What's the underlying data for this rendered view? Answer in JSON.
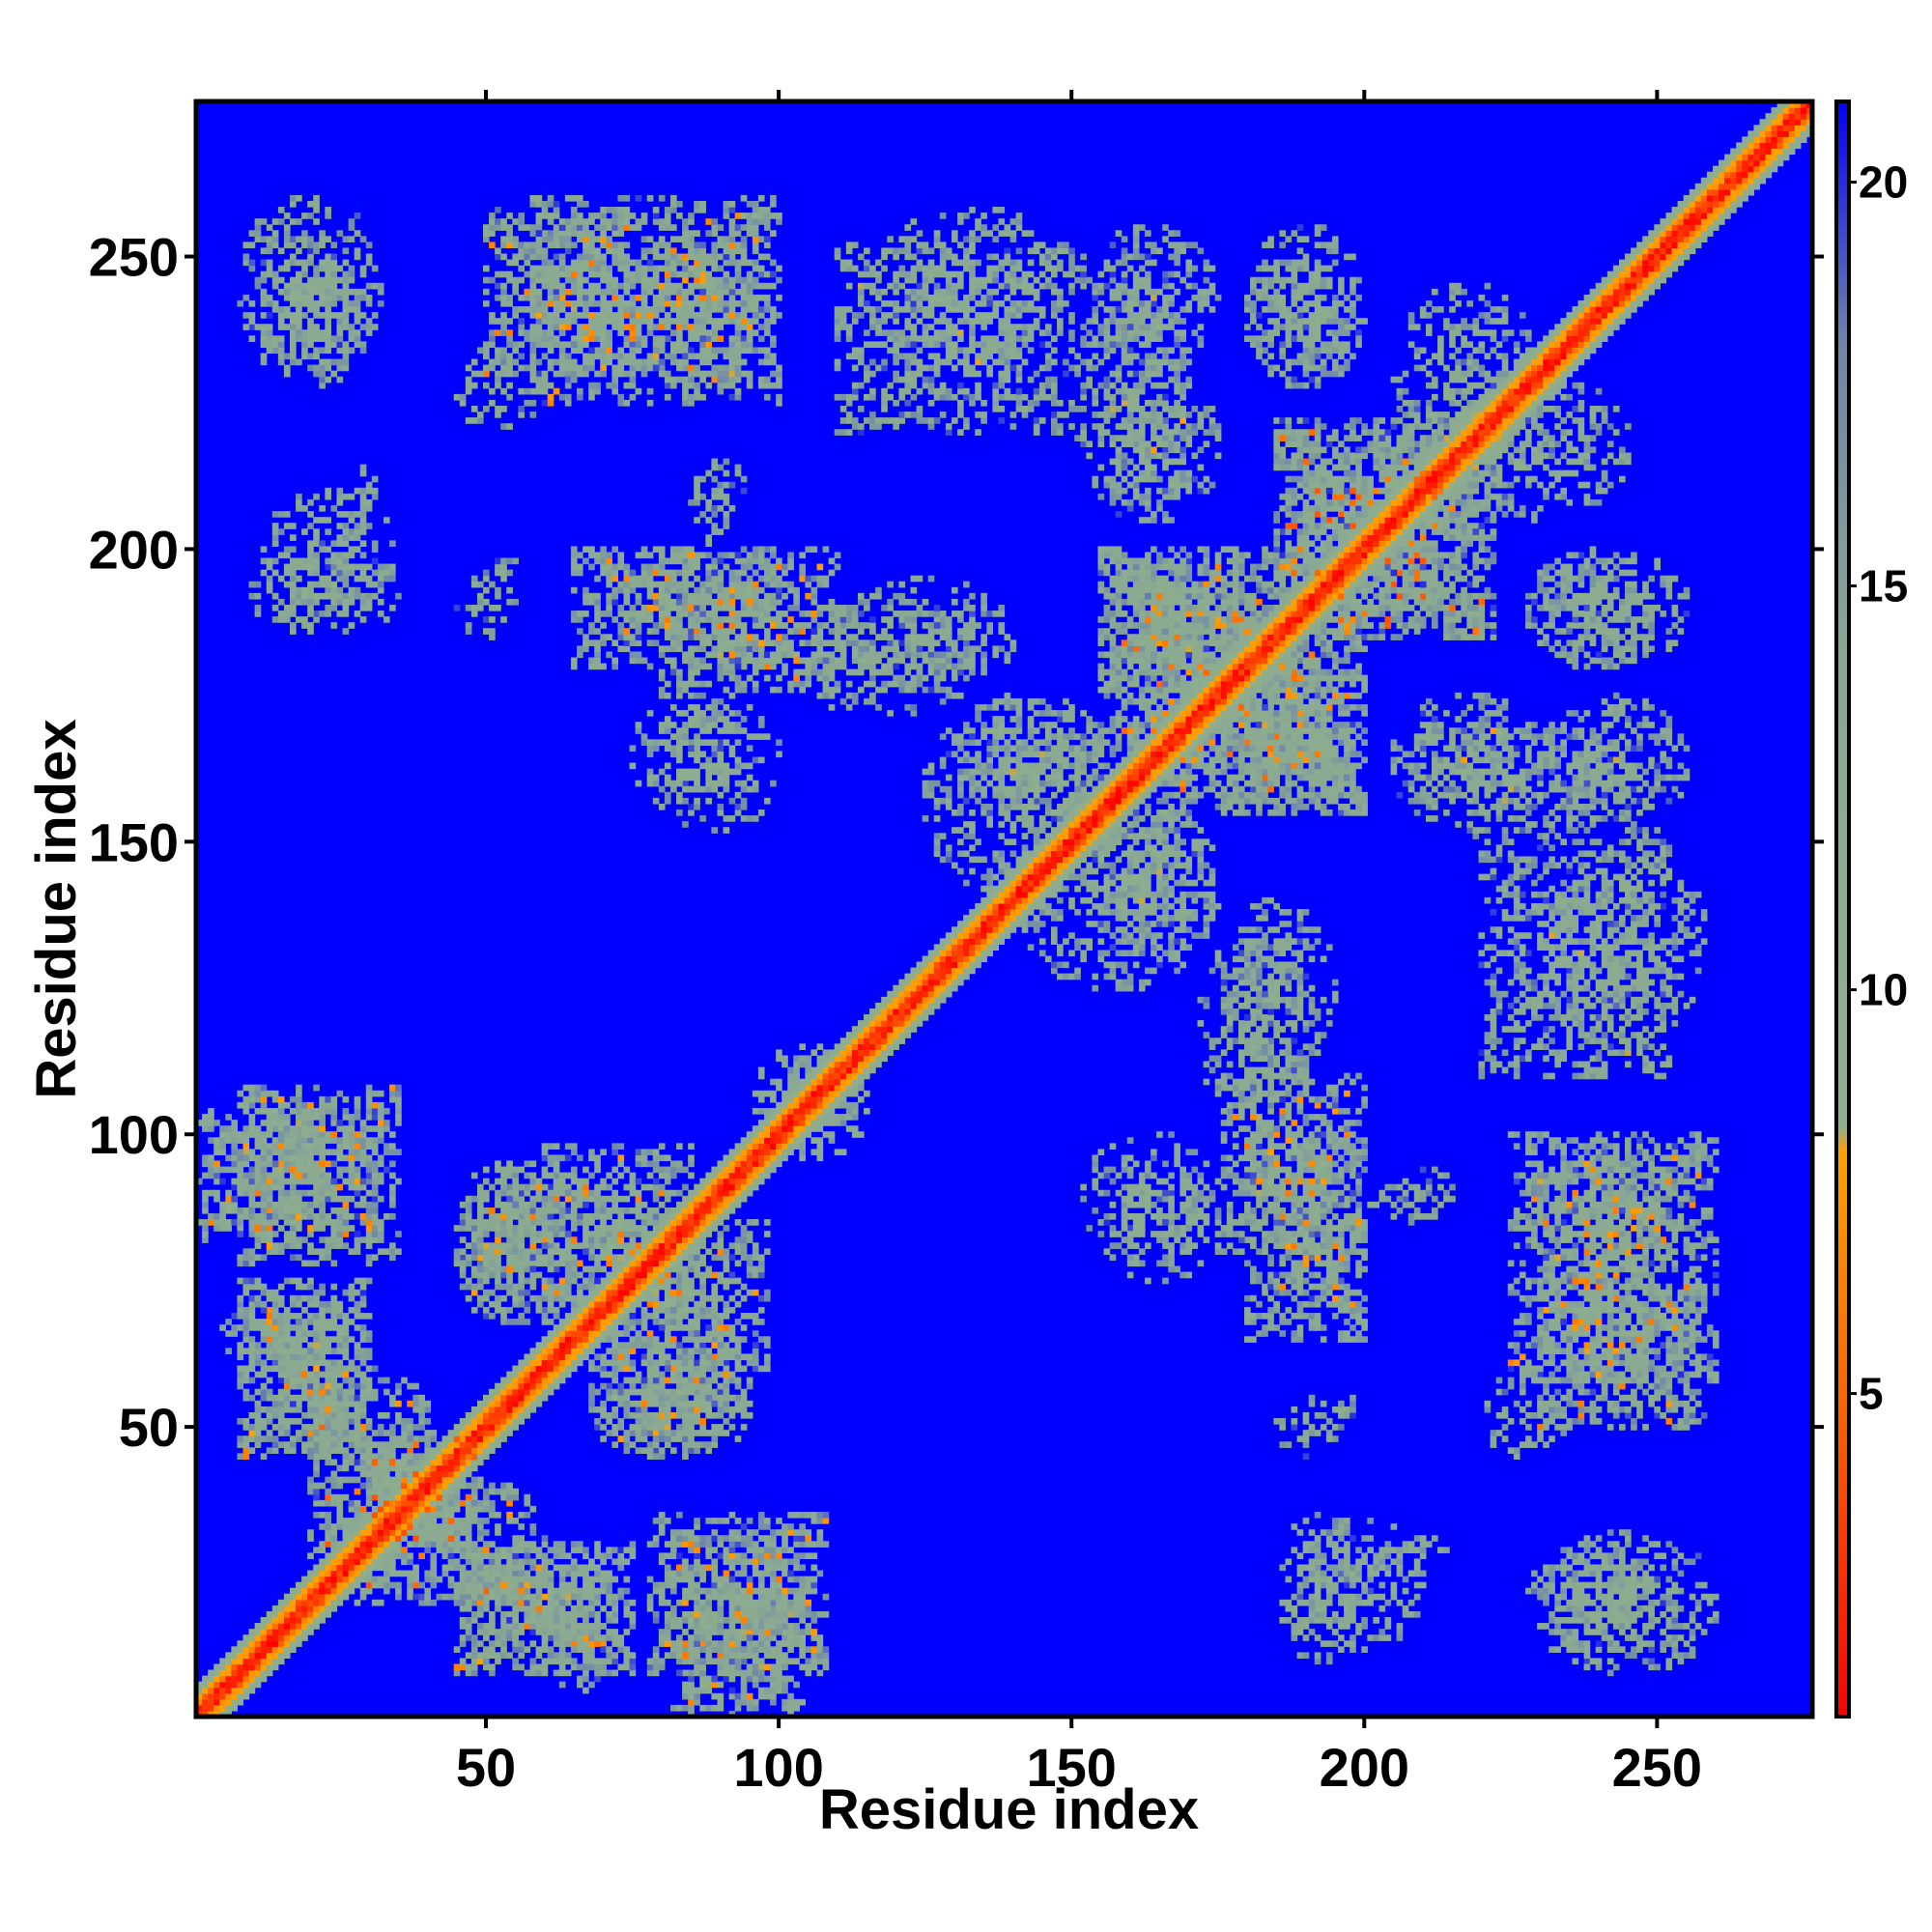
{
  "chart_data": {
    "type": "heatmap",
    "title": "",
    "xlabel": "Residue index",
    "ylabel": "Residue index",
    "xlim": [
      1,
      276
    ],
    "ylim": [
      1,
      276
    ],
    "x_ticks": [
      50,
      100,
      150,
      200,
      250
    ],
    "y_ticks": [
      50,
      100,
      150,
      200,
      250
    ],
    "colorbar": {
      "range": [
        1,
        21
      ],
      "ticks": [
        5,
        10,
        15,
        20
      ],
      "stops": [
        {
          "value": 1,
          "color": "#ff0000"
        },
        {
          "value": 4.5,
          "color": "#ff5a00"
        },
        {
          "value": 8,
          "color": "#ffa000"
        },
        {
          "value": 8.3,
          "color": "#8fb08c"
        },
        {
          "value": 14,
          "color": "#8aa894"
        },
        {
          "value": 18,
          "color": "#6d86ab"
        },
        {
          "value": 21,
          "color": "#0000ff"
        }
      ]
    },
    "background_color": "#0000ff",
    "diagonal": {
      "band_halfwidth": 5,
      "core_value": 2,
      "edge_value": 12
    },
    "contact_regions": [
      {
        "x": [
          1,
          22
        ],
        "y": [
          82,
          104
        ],
        "cross_diag": true,
        "density": 0.85,
        "min_value": 6
      },
      {
        "x": [
          5,
          30
        ],
        "y": [
          60,
          72
        ],
        "cross_diag": false,
        "density": 0.8,
        "min_value": 6
      },
      {
        "x": [
          15,
          40
        ],
        "y": [
          45,
          60
        ],
        "cross_diag": false,
        "density": 0.8,
        "min_value": 6
      },
      {
        "x": [
          20,
          48
        ],
        "y": [
          28,
          50
        ],
        "cross_diag": true,
        "density": 0.85,
        "min_value": 4
      },
      {
        "x": [
          45,
          75
        ],
        "y": [
          8,
          30
        ],
        "cross_diag": true,
        "density": 0.85,
        "min_value": 6
      },
      {
        "x": [
          78,
          108
        ],
        "y": [
          8,
          35
        ],
        "cross_diag": true,
        "density": 0.85,
        "min_value": 6
      },
      {
        "x": [
          45,
          60
        ],
        "y": [
          68,
          95
        ],
        "cross_diag": false,
        "density": 0.8,
        "min_value": 6
      },
      {
        "x": [
          60,
          85
        ],
        "y": [
          70,
          98
        ],
        "cross_diag": true,
        "density": 0.8,
        "min_value": 6
      },
      {
        "x": [
          68,
          95
        ],
        "y": [
          45,
          70
        ],
        "cross_diag": false,
        "density": 0.8,
        "min_value": 6
      },
      {
        "x": [
          95,
          115
        ],
        "y": [
          100,
          115
        ],
        "cross_diag": false,
        "density": 0.6,
        "min_value": 9
      },
      {
        "x": [
          10,
          30
        ],
        "y": [
          228,
          250
        ],
        "cross_diag": false,
        "density": 0.55,
        "min_value": 10
      },
      {
        "x": [
          12,
          35
        ],
        "y": [
          188,
          210
        ],
        "cross_diag": false,
        "density": 0.5,
        "min_value": 9
      },
      {
        "x": [
          48,
          56
        ],
        "y": [
          192,
          200
        ],
        "cross_diag": false,
        "density": 0.45,
        "min_value": 10
      },
      {
        "x": [
          50,
          75
        ],
        "y": [
          230,
          258
        ],
        "cross_diag": true,
        "density": 0.75,
        "min_value": 6
      },
      {
        "x": [
          75,
          100
        ],
        "y": [
          228,
          255
        ],
        "cross_diag": false,
        "density": 0.7,
        "min_value": 6
      },
      {
        "x": [
          110,
          150
        ],
        "y": [
          220,
          252
        ],
        "cross_diag": true,
        "density": 0.6,
        "min_value": 8
      },
      {
        "x": [
          150,
          170
        ],
        "y": [
          205,
          245
        ],
        "cross_diag": false,
        "density": 0.6,
        "min_value": 8
      },
      {
        "x": [
          180,
          200
        ],
        "y": [
          228,
          250
        ],
        "cross_diag": false,
        "density": 0.55,
        "min_value": 9
      },
      {
        "x": [
          65,
          100
        ],
        "y": [
          180,
          200
        ],
        "cross_diag": true,
        "density": 0.75,
        "min_value": 6
      },
      {
        "x": [
          100,
          135
        ],
        "y": [
          172,
          192
        ],
        "cross_diag": false,
        "density": 0.55,
        "min_value": 9
      },
      {
        "x": [
          75,
          95
        ],
        "y": [
          155,
          175
        ],
        "cross_diag": false,
        "density": 0.5,
        "min_value": 10
      },
      {
        "x": [
          85,
          92
        ],
        "y": [
          200,
          215
        ],
        "cross_diag": false,
        "density": 0.5,
        "min_value": 10
      },
      {
        "x": [
          125,
          160
        ],
        "y": [
          140,
          175
        ],
        "cross_diag": false,
        "density": 0.6,
        "min_value": 8
      },
      {
        "x": [
          155,
          190
        ],
        "y": [
          165,
          200
        ],
        "cross_diag": true,
        "density": 0.8,
        "min_value": 5
      },
      {
        "x": [
          175,
          200
        ],
        "y": [
          155,
          180
        ],
        "cross_diag": true,
        "density": 0.8,
        "min_value": 6
      },
      {
        "x": [
          185,
          220
        ],
        "y": [
          185,
          222
        ],
        "cross_diag": true,
        "density": 0.75,
        "min_value": 4
      },
      {
        "x": [
          205,
          230
        ],
        "y": [
          210,
          245
        ],
        "cross_diag": false,
        "density": 0.6,
        "min_value": 8
      },
      {
        "x": [
          228,
          255
        ],
        "y": [
          180,
          200
        ],
        "cross_diag": false,
        "density": 0.6,
        "min_value": 9
      },
      {
        "x": [
          205,
          230
        ],
        "y": [
          155,
          175
        ],
        "cross_diag": false,
        "density": 0.6,
        "min_value": 8
      },
      {
        "x": [
          230,
          255
        ],
        "y": [
          150,
          175
        ],
        "cross_diag": false,
        "density": 0.6,
        "min_value": 8
      },
      {
        "x": [
          230,
          258
        ],
        "y": [
          115,
          150
        ],
        "cross_diag": false,
        "density": 0.55,
        "min_value": 9
      },
      {
        "x": [
          155,
          175
        ],
        "y": [
          130,
          155
        ],
        "cross_diag": false,
        "density": 0.55,
        "min_value": 9
      },
      {
        "x": [
          175,
          195
        ],
        "y": [
          110,
          140
        ],
        "cross_diag": false,
        "density": 0.55,
        "min_value": 9
      },
      {
        "x": [
          175,
          200
        ],
        "y": [
          80,
          110
        ],
        "cross_diag": true,
        "density": 0.7,
        "min_value": 6
      },
      {
        "x": [
          152,
          175
        ],
        "y": [
          78,
          100
        ],
        "cross_diag": false,
        "density": 0.5,
        "min_value": 9
      },
      {
        "x": [
          205,
          215
        ],
        "y": [
          85,
          95
        ],
        "cross_diag": false,
        "density": 0.45,
        "min_value": 10
      },
      {
        "x": [
          225,
          260
        ],
        "y": [
          58,
          100
        ],
        "cross_diag": true,
        "density": 0.7,
        "min_value": 6
      },
      {
        "x": [
          185,
          195
        ],
        "y": [
          45,
          55
        ],
        "cross_diag": false,
        "density": 0.35,
        "min_value": 10
      },
      {
        "x": [
          220,
          235
        ],
        "y": [
          45,
          60
        ],
        "cross_diag": false,
        "density": 0.35,
        "min_value": 10
      },
      {
        "x": [
          185,
          200
        ],
        "y": [
          10,
          35
        ],
        "cross_diag": false,
        "density": 0.55,
        "min_value": 8
      },
      {
        "x": [
          200,
          215
        ],
        "y": [
          25,
          32
        ],
        "cross_diag": false,
        "density": 0.35,
        "min_value": 10
      },
      {
        "x": [
          230,
          260
        ],
        "y": [
          8,
          32
        ],
        "cross_diag": false,
        "density": 0.5,
        "min_value": 9
      }
    ]
  }
}
